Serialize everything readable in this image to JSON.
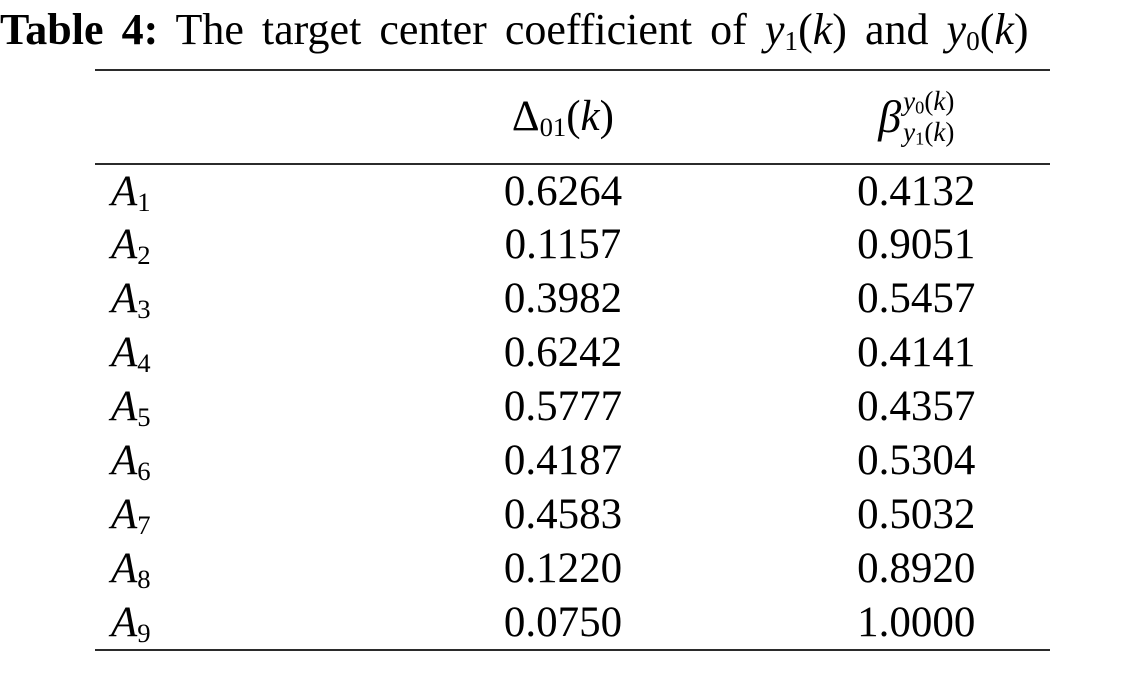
{
  "page": {
    "background": "#ffffff",
    "text_color": "#000000",
    "rule_color": "#2b2b2b"
  },
  "title": {
    "label": "Table 4:",
    "body_prefix": "The target center coefficient of",
    "math1": {
      "base": "y",
      "sub": "1",
      "open": "(",
      "arg": "k",
      "close": ")"
    },
    "conjunction": "and",
    "math2": {
      "base": "y",
      "sub": "0",
      "open": "(",
      "arg": "k",
      "close": ")"
    }
  },
  "table": {
    "columns": {
      "delta": {
        "symbol": "Δ",
        "sub": "01",
        "open": "(",
        "arg": "k",
        "close": ")"
      },
      "beta": {
        "symbol": "β",
        "sup": {
          "base": "y",
          "sub": "0",
          "open": "(",
          "arg": "k",
          "close": ")"
        },
        "sub": {
          "base": "y",
          "sub": "1",
          "open": "(",
          "arg": "k",
          "close": ")"
        }
      }
    },
    "rows": [
      {
        "label": {
          "base": "A",
          "sub": "1"
        },
        "delta": "0.6264",
        "beta": "0.4132"
      },
      {
        "label": {
          "base": "A",
          "sub": "2"
        },
        "delta": "0.1157",
        "beta": "0.9051"
      },
      {
        "label": {
          "base": "A",
          "sub": "3"
        },
        "delta": "0.3982",
        "beta": "0.5457"
      },
      {
        "label": {
          "base": "A",
          "sub": "4"
        },
        "delta": "0.6242",
        "beta": "0.4141"
      },
      {
        "label": {
          "base": "A",
          "sub": "5"
        },
        "delta": "0.5777",
        "beta": "0.4357"
      },
      {
        "label": {
          "base": "A",
          "sub": "6"
        },
        "delta": "0.4187",
        "beta": "0.5304"
      },
      {
        "label": {
          "base": "A",
          "sub": "7"
        },
        "delta": "0.4583",
        "beta": "0.5032"
      },
      {
        "label": {
          "base": "A",
          "sub": "8"
        },
        "delta": "0.1220",
        "beta": "0.8920"
      },
      {
        "label": {
          "base": "A",
          "sub": "9"
        },
        "delta": "0.0750",
        "beta": "1.0000"
      }
    ]
  }
}
